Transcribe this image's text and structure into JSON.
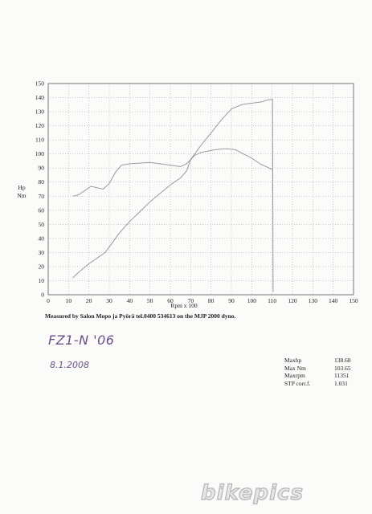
{
  "chart_data": {
    "type": "line",
    "x_label": "Rpm x 100",
    "y_label": [
      "Hp",
      "Nm"
    ],
    "xlim": [
      0,
      150
    ],
    "ylim": [
      0,
      150
    ],
    "x_ticks": [
      0,
      10,
      20,
      30,
      40,
      50,
      60,
      70,
      80,
      90,
      100,
      110,
      120,
      130,
      140,
      150
    ],
    "y_ticks": [
      0,
      10,
      20,
      30,
      40,
      50,
      60,
      70,
      80,
      90,
      100,
      110,
      120,
      130,
      140,
      150
    ],
    "grid": true,
    "series": [
      {
        "color": "#9a9a9a",
        "x": [
          12,
          15,
          20,
          25,
          28,
          30,
          35,
          40,
          45,
          50,
          55,
          60,
          65,
          68,
          70,
          75,
          80,
          85,
          90,
          95,
          100,
          105,
          108,
          110.2,
          110.5
        ],
        "y": [
          12,
          16,
          22,
          27,
          30,
          34,
          44,
          52,
          59,
          66,
          72,
          78,
          83,
          88,
          96,
          106,
          115,
          124,
          132,
          135,
          136,
          137,
          138.5,
          138.7,
          2
        ]
      },
      {
        "color": "#9a9a9a",
        "x": [
          12,
          15,
          18,
          21,
          24,
          27,
          30,
          33,
          36,
          40,
          45,
          50,
          55,
          60,
          65,
          68,
          72,
          75,
          80,
          85,
          88,
          92,
          96,
          100,
          104,
          107,
          110
        ],
        "y": [
          70,
          71,
          74,
          77,
          76,
          75,
          79,
          87,
          92,
          93,
          93.5,
          94,
          93,
          92,
          91,
          93,
          99,
          101,
          102.5,
          103.5,
          103.7,
          103,
          100,
          97,
          93,
          91,
          89
        ]
      }
    ]
  },
  "caption": "Measured by Salon Mopo ja Pyörä tel.0400 534613 on the MJP 2000 dyno.",
  "handwriting": {
    "model": "FZ1-N '06",
    "date": "8.1.2008"
  },
  "stats": [
    {
      "label": "Maxhp",
      "value": "138.68"
    },
    {
      "label": "Max Nm",
      "value": "103.65"
    },
    {
      "label": "Maxrpm",
      "value": "11351"
    },
    {
      "label": "STP corr.f.",
      "value": "1.031"
    }
  ],
  "watermark": "bikepics"
}
